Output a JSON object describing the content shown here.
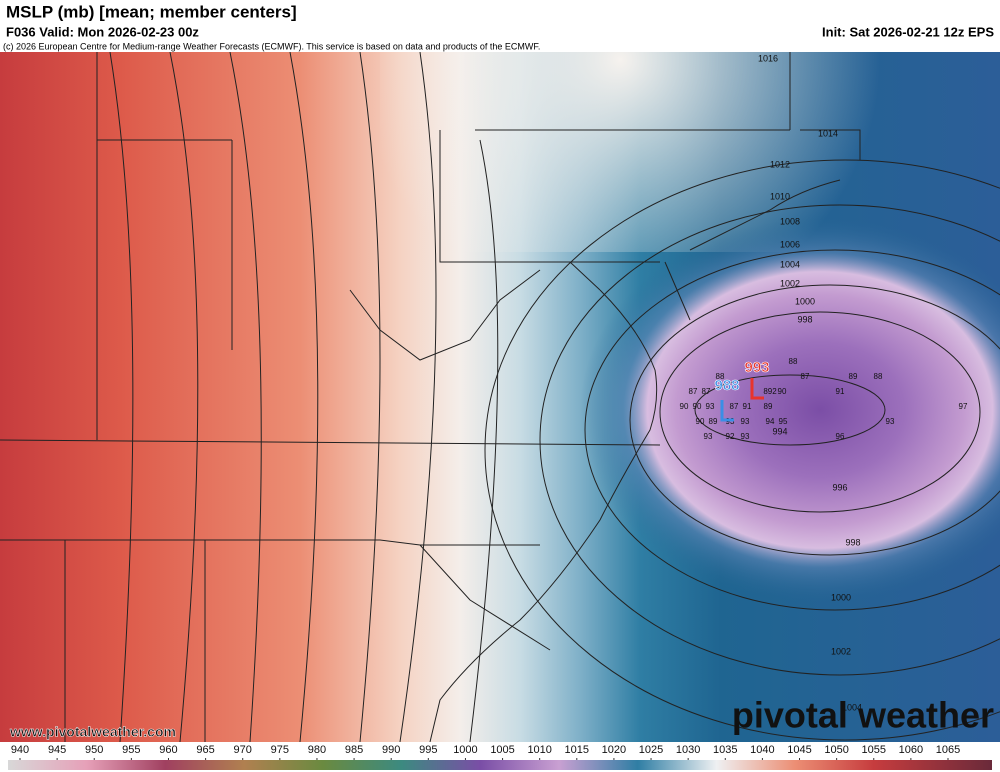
{
  "header": {
    "title": "MSLP (mb) [mean; member centers]",
    "valid": "F036 Valid: Mon 2026-02-23 00z",
    "init": "Init: Sat 2026-02-21 12z EPS",
    "credit": "(c) 2026 European Centre for Medium-range Weather Forecasts (ECMWF). This service is based on data and products of the ECMWF."
  },
  "map": {
    "isobar_labels": [
      "1016",
      "1014",
      "1012",
      "1010",
      "1008",
      "1006",
      "1004",
      "1002",
      "1000",
      "998",
      "994",
      "996",
      "998",
      "1000",
      "1002",
      "1004"
    ],
    "lows": [
      {
        "label": "993",
        "color": "#e8342c"
      },
      {
        "label": "988",
        "color": "#3a8ee6"
      }
    ],
    "member_labels": [
      "88",
      "88",
      "87",
      "89",
      "88",
      "87",
      "87",
      "90",
      "90",
      "93",
      "87",
      "91",
      "89",
      "90",
      "89",
      "93",
      "93",
      "94",
      "95",
      "93",
      "92",
      "93",
      "96",
      "93",
      "91",
      "97",
      "892",
      "90",
      "994"
    ]
  },
  "footer": {
    "url": "www.pivotalweather.com",
    "logo": "pivotal weather"
  },
  "colorbar": {
    "ticks": [
      940,
      945,
      950,
      955,
      960,
      965,
      970,
      975,
      980,
      985,
      990,
      995,
      1000,
      1005,
      1010,
      1015,
      1020,
      1025,
      1030,
      1035,
      1040,
      1045,
      1050,
      1055,
      1060,
      1065
    ]
  }
}
